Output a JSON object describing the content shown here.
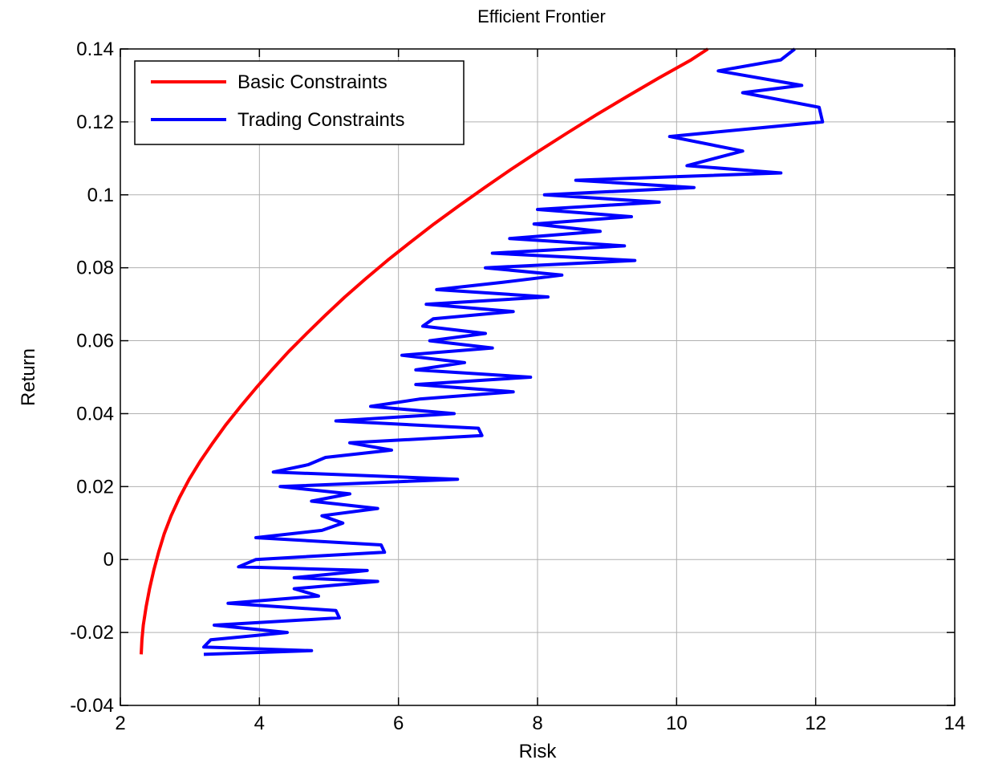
{
  "chart_data": {
    "type": "line",
    "title": "Efficient Frontier",
    "xlabel": "Risk",
    "ylabel": "Return",
    "xlim": [
      2,
      14
    ],
    "ylim": [
      -0.04,
      0.14
    ],
    "xticks": [
      2,
      4,
      6,
      8,
      10,
      12,
      14
    ],
    "yticks": [
      -0.04,
      -0.02,
      0,
      0.02,
      0.04,
      0.06,
      0.08,
      0.1,
      0.12,
      0.14
    ],
    "xtick_labels": [
      "2",
      "4",
      "6",
      "8",
      "10",
      "12",
      "14"
    ],
    "ytick_labels": [
      "-0.04",
      "-0.02",
      "0",
      "0.02",
      "0.04",
      "0.06",
      "0.08",
      "0.1",
      "0.12",
      "0.14"
    ],
    "grid": true,
    "legend_position": "top-left",
    "series": [
      {
        "name": "Basic Constraints",
        "color": "#ff0000",
        "x": [
          2.3,
          2.31,
          2.33,
          2.37,
          2.42,
          2.48,
          2.55,
          2.63,
          2.73,
          2.85,
          2.99,
          3.15,
          3.33,
          3.52,
          3.73,
          3.95,
          4.18,
          4.42,
          4.68,
          4.95,
          5.23,
          5.53,
          5.84,
          6.17,
          6.51,
          6.87,
          7.24,
          7.62,
          8.02,
          8.43,
          8.85,
          9.29,
          9.74,
          10.21,
          10.45
        ],
        "y": [
          -0.026,
          -0.022,
          -0.018,
          -0.013,
          -0.008,
          -0.003,
          0.002,
          0.007,
          0.012,
          0.017,
          0.022,
          0.027,
          0.032,
          0.037,
          0.042,
          0.047,
          0.052,
          0.057,
          0.062,
          0.067,
          0.072,
          0.077,
          0.082,
          0.087,
          0.092,
          0.097,
          0.102,
          0.107,
          0.112,
          0.117,
          0.122,
          0.127,
          0.132,
          0.137,
          0.14
        ]
      },
      {
        "name": "Trading Constraints",
        "color": "#0000ff",
        "x": [
          3.2,
          4.75,
          3.2,
          3.3,
          4.4,
          3.35,
          5.15,
          5.1,
          3.55,
          4.85,
          4.5,
          5.7,
          4.5,
          5.55,
          3.7,
          3.95,
          5.8,
          5.75,
          3.95,
          4.9,
          5.2,
          4.9,
          5.7,
          4.75,
          5.3,
          4.3,
          6.85,
          4.2,
          4.7,
          4.95,
          5.9,
          5.3,
          7.2,
          7.15,
          5.1,
          6.8,
          5.6,
          6.3,
          7.65,
          6.25,
          7.9,
          6.25,
          6.95,
          6.05,
          7.35,
          6.45,
          7.25,
          6.35,
          6.5,
          7.65,
          6.4,
          8.15,
          6.55,
          7.5,
          8.35,
          7.25,
          9.4,
          7.35,
          9.25,
          7.6,
          8.9,
          7.95,
          9.35,
          8.0,
          9.75,
          8.1,
          10.25,
          8.55,
          11.5,
          10.15,
          10.95,
          9.9,
          12.1,
          12.05,
          10.95,
          11.8,
          10.6,
          11.5,
          11.7
        ],
        "y": [
          -0.026,
          -0.025,
          -0.024,
          -0.022,
          -0.02,
          -0.018,
          -0.016,
          -0.014,
          -0.012,
          -0.01,
          -0.008,
          -0.006,
          -0.005,
          -0.003,
          -0.002,
          0.0,
          0.002,
          0.004,
          0.006,
          0.008,
          0.01,
          0.012,
          0.014,
          0.016,
          0.018,
          0.02,
          0.022,
          0.024,
          0.026,
          0.028,
          0.03,
          0.032,
          0.034,
          0.036,
          0.038,
          0.04,
          0.042,
          0.044,
          0.046,
          0.048,
          0.05,
          0.052,
          0.054,
          0.056,
          0.058,
          0.06,
          0.062,
          0.064,
          0.066,
          0.068,
          0.07,
          0.072,
          0.074,
          0.076,
          0.078,
          0.08,
          0.082,
          0.084,
          0.086,
          0.088,
          0.09,
          0.092,
          0.094,
          0.096,
          0.098,
          0.1,
          0.102,
          0.104,
          0.106,
          0.108,
          0.112,
          0.116,
          0.12,
          0.124,
          0.128,
          0.13,
          0.134,
          0.137,
          0.14
        ]
      }
    ]
  }
}
